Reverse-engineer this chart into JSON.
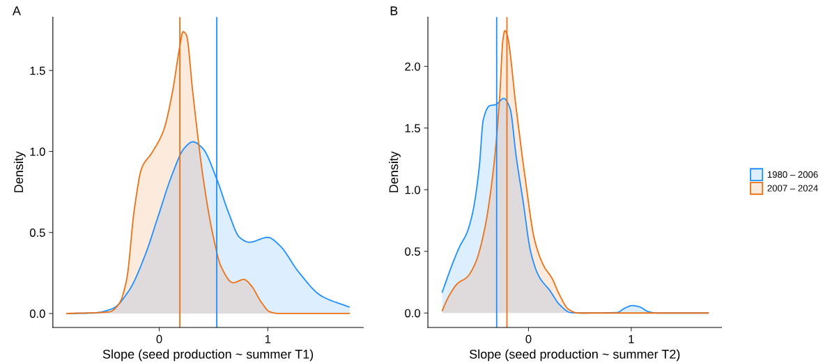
{
  "chart_data": [
    {
      "type": "area",
      "title": "A",
      "xlabel": "Slope (seed production ~ summer T1)",
      "ylabel": "Density",
      "xlim": [
        -0.98,
        1.88
      ],
      "ylim": [
        -0.086,
        1.83
      ],
      "xticks": [
        0,
        1
      ],
      "yticks": [
        {
          "value": 0,
          "label": "0.0"
        },
        {
          "value": 0.5,
          "label": "0.5"
        },
        {
          "value": 1,
          "label": "1.0"
        },
        {
          "value": 1.5,
          "label": "1.5"
        }
      ],
      "grid": false,
      "legend": "right",
      "series": [
        {
          "name": "1980 – 2006",
          "color": "#1e8fff",
          "x": [
            -0.85,
            -0.61,
            -0.43,
            -0.28,
            -0.13,
            -0.01,
            0.12,
            0.23,
            0.31,
            0.4,
            0.53,
            0.64,
            0.74,
            0.83,
            1.0,
            1.11,
            1.28,
            1.49,
            1.75
          ],
          "values": [
            0,
            0.003,
            0.03,
            0.14,
            0.36,
            0.6,
            0.86,
            1.02,
            1.06,
            1.02,
            0.83,
            0.62,
            0.47,
            0.44,
            0.47,
            0.42,
            0.26,
            0.11,
            0.04
          ]
        },
        {
          "name": "2007 – 2024",
          "color": "#ec7014",
          "x": [
            -0.85,
            -0.46,
            -0.37,
            -0.3,
            -0.23,
            -0.16,
            -0.07,
            0.04,
            0.12,
            0.19,
            0.22,
            0.25,
            0.31,
            0.4,
            0.49,
            0.57,
            0.68,
            0.78,
            0.85,
            0.94,
            1.02,
            1.11,
            1.75
          ],
          "values": [
            0,
            0.01,
            0.06,
            0.21,
            0.64,
            0.9,
            0.99,
            1.13,
            1.36,
            1.65,
            1.74,
            1.72,
            1.36,
            0.86,
            0.5,
            0.29,
            0.19,
            0.21,
            0.17,
            0.07,
            0.01,
            0,
            0
          ]
        }
      ],
      "ref_lines": [
        {
          "axis": "x",
          "value": 0.53,
          "color": "#1e8fff"
        },
        {
          "axis": "x",
          "value": 0.19,
          "color": "#ec7014"
        }
      ]
    },
    {
      "type": "area",
      "title": "B",
      "xlabel": "Slope (seed production ~ summer T2)",
      "ylabel": "Density",
      "xlim": [
        -0.98,
        1.88
      ],
      "ylim": [
        -0.117,
        2.4
      ],
      "xticks": [
        0,
        1
      ],
      "yticks": [
        {
          "value": 0,
          "label": "0.0"
        },
        {
          "value": 0.5,
          "label": "0.5"
        },
        {
          "value": 1,
          "label": "1.0"
        },
        {
          "value": 1.5,
          "label": "1.5"
        },
        {
          "value": 2,
          "label": "2.0"
        }
      ],
      "grid": false,
      "legend": "right",
      "series": [
        {
          "name": "1980 – 2006",
          "color": "#1e8fff",
          "x": [
            -0.84,
            -0.74,
            -0.67,
            -0.6,
            -0.54,
            -0.48,
            -0.44,
            -0.38,
            -0.32,
            -0.24,
            -0.18,
            -0.12,
            -0.05,
            0.02,
            0.1,
            0.21,
            0.3,
            0.41,
            0.52,
            0.86,
            0.94,
            1.01,
            1.08,
            1.17,
            1.25,
            1.75
          ],
          "values": [
            0.17,
            0.4,
            0.54,
            0.65,
            0.83,
            1.18,
            1.57,
            1.68,
            1.69,
            1.74,
            1.66,
            1.27,
            0.89,
            0.5,
            0.3,
            0.18,
            0.07,
            0.004,
            0,
            0.004,
            0.04,
            0.06,
            0.05,
            0.01,
            0,
            0
          ]
        },
        {
          "name": "2007 – 2024",
          "color": "#ec7014",
          "x": [
            -0.84,
            -0.78,
            -0.69,
            -0.6,
            -0.52,
            -0.43,
            -0.34,
            -0.28,
            -0.25,
            -0.23,
            -0.21,
            -0.12,
            -0.03,
            0.06,
            0.15,
            0.23,
            0.3,
            0.39,
            0.48,
            1.75
          ],
          "values": [
            0.02,
            0.13,
            0.24,
            0.29,
            0.4,
            0.67,
            1.18,
            1.76,
            2.21,
            2.29,
            2.26,
            1.66,
            1.08,
            0.59,
            0.38,
            0.28,
            0.15,
            0.03,
            0,
            0
          ]
        }
      ],
      "ref_lines": [
        {
          "axis": "x",
          "value": -0.31,
          "color": "#1e8fff"
        },
        {
          "axis": "x",
          "value": -0.21,
          "color": "#ec7014"
        }
      ]
    }
  ]
}
